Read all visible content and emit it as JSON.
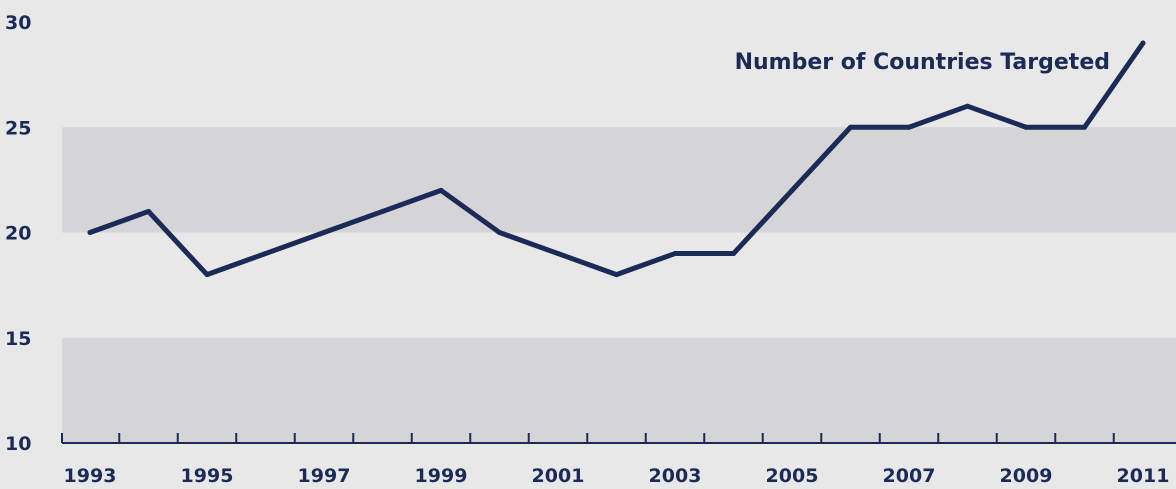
{
  "chart_data": {
    "type": "line",
    "title": "",
    "xlabel": "",
    "ylabel": "",
    "x": [
      1993,
      1994,
      1995,
      1996,
      1997,
      1998,
      1999,
      2000,
      2001,
      2002,
      2003,
      2004,
      2005,
      2006,
      2007,
      2008,
      2009,
      2010,
      2011
    ],
    "series": [
      {
        "name": "Number of Countries Targeted",
        "values": [
          20,
          21,
          18,
          19,
          20,
          21,
          22,
          20,
          19,
          18,
          19,
          19,
          22,
          25,
          25,
          26,
          25,
          25,
          29
        ]
      }
    ],
    "xlim": [
      1993,
      2011
    ],
    "ylim": [
      10,
      30
    ],
    "x_tick_labels": [
      "1993",
      "1995",
      "1997",
      "1999",
      "2001",
      "2003",
      "2005",
      "2007",
      "2009",
      "2011"
    ],
    "y_tick_labels": [
      "10",
      "15",
      "20",
      "25",
      "30"
    ],
    "horizontal_bands": [
      [
        10,
        15
      ],
      [
        20,
        25
      ]
    ],
    "grid": false,
    "legend": "label at end of line, top-right",
    "colors": {
      "background": "#e8e8e9",
      "band": "#d5d5d7",
      "line": "#1b2a57",
      "text": "#1b2a57"
    }
  }
}
